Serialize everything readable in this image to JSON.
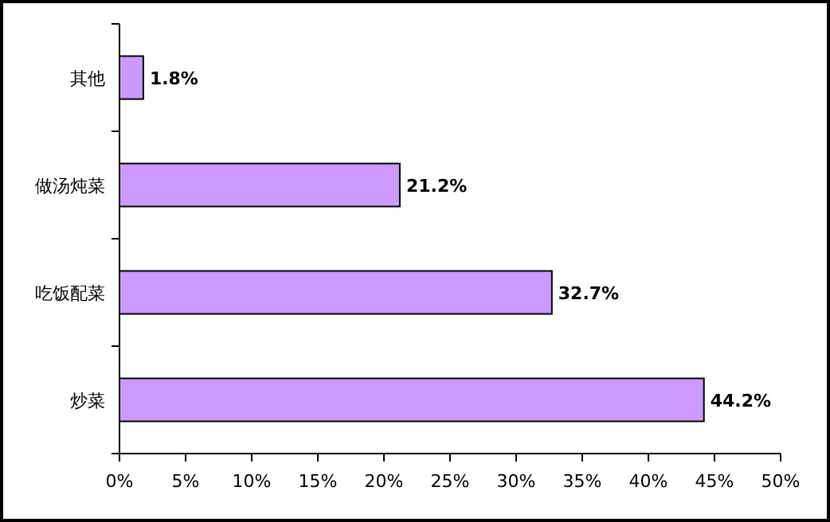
{
  "chart_data": {
    "type": "bar",
    "orientation": "horizontal",
    "categories": [
      "其他",
      "做汤炖菜",
      "吃饭配菜",
      "炒菜"
    ],
    "values": [
      1.8,
      21.2,
      32.7,
      44.2
    ],
    "color": "#cc99ff",
    "value_labels": [
      "1.8%",
      "21.2%",
      "32.7%",
      "44.2%"
    ],
    "xlim": [
      0,
      50
    ],
    "xticks": [
      {
        "value": 0,
        "label": "0%"
      },
      {
        "value": 5,
        "label": "5%"
      },
      {
        "value": 10,
        "label": "10%"
      },
      {
        "value": 15,
        "label": "15%"
      },
      {
        "value": 20,
        "label": "20%"
      },
      {
        "value": 25,
        "label": "25%"
      },
      {
        "value": 30,
        "label": "30%"
      },
      {
        "value": 35,
        "label": "35%"
      },
      {
        "value": 40,
        "label": "40%"
      },
      {
        "value": 45,
        "label": "45%"
      },
      {
        "value": 50,
        "label": "50%"
      }
    ]
  }
}
